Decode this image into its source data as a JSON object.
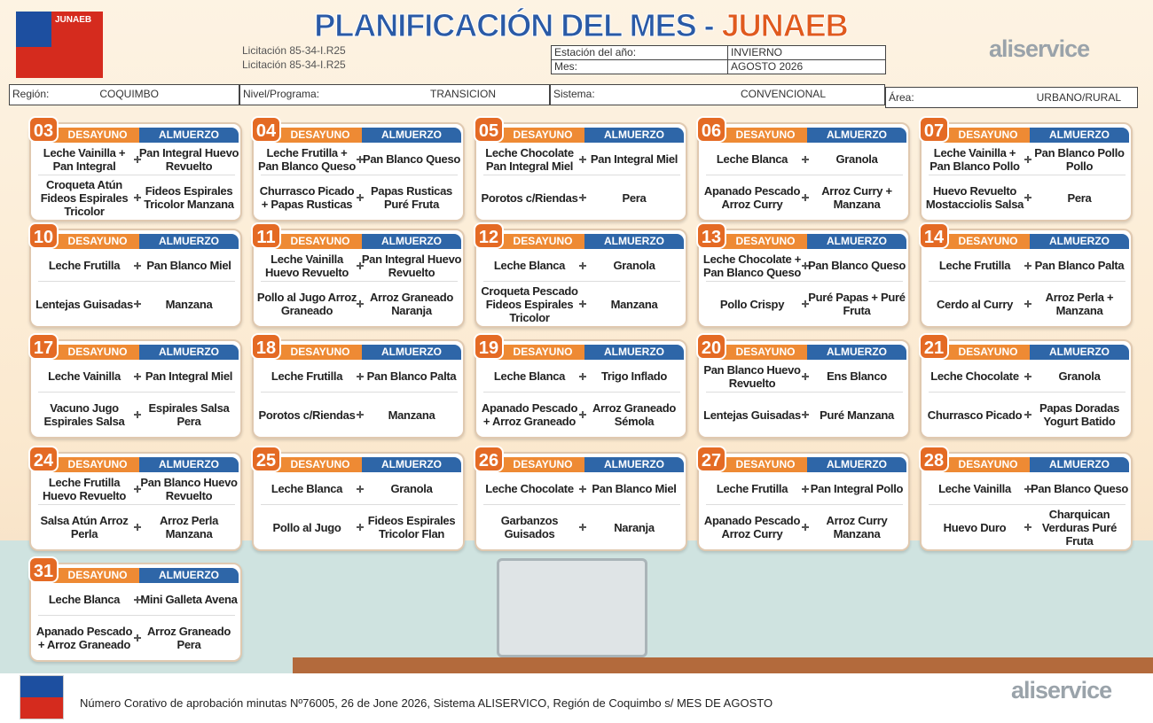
{
  "header": {
    "logo_left": "JUNAEB",
    "title": "PLANIFICACIÓN DEL MES - ",
    "title_accent": "JUNAEB",
    "logo_right": "aliservice",
    "licitacion": [
      "Licitación 85-34-I.R25",
      "Licitación 85-34-I.R25"
    ],
    "season_label": "Estación del año:",
    "season": "INVIERNO",
    "month_label": "Mes:",
    "month": "AGOSTO 2026",
    "region_label": "Región:",
    "region": "COQUIMBO",
    "level_label": "Nivel/Programa:",
    "level": "TRANSICION",
    "system_label": "Sistema:",
    "system": "CONVENCIONAL",
    "area_label": "Área:",
    "area": "URBANO/RURAL"
  },
  "menu": {
    "labels": {
      "breakfast": "DESAYUNO",
      "lunch": "ALMUERZO"
    },
    "days": [
      {
        "day": "03",
        "rows": [
          [
            "Leche Vainilla + Pan Integral",
            "Pan Integral Huevo Revuelto"
          ],
          [
            "Croqueta Atún Fideos Espirales Tricolor",
            "Fideos Espirales Tricolor Manzana"
          ]
        ]
      },
      {
        "day": "04",
        "rows": [
          [
            "Leche Frutilla + Pan Blanco Queso",
            "Pan Blanco Queso"
          ],
          [
            "Churrasco Picado + Papas Rusticas",
            "Papas Rusticas Puré Fruta"
          ]
        ]
      },
      {
        "day": "05",
        "rows": [
          [
            "Leche Chocolate Pan Integral Miel",
            "Pan Integral Miel"
          ],
          [
            "Porotos c/Riendas",
            "Pera"
          ]
        ]
      },
      {
        "day": "06",
        "rows": [
          [
            "Leche Blanca",
            "Granola"
          ],
          [
            "Apanado Pescado Arroz Curry",
            "Arroz Curry + Manzana"
          ]
        ]
      },
      {
        "day": "07",
        "rows": [
          [
            "Leche Vainilla + Pan Blanco Pollo",
            "Pan Blanco Pollo Pollo"
          ],
          [
            "Huevo Revuelto Mostacciolis Salsa",
            "Pera"
          ]
        ]
      },
      {
        "day": "10",
        "rows": [
          [
            "Leche Frutilla",
            "Pan Blanco Miel"
          ],
          [
            "Lentejas Guisadas",
            "Manzana"
          ]
        ]
      },
      {
        "day": "11",
        "rows": [
          [
            "Leche Vainilla Huevo Revuelto",
            "Pan Integral Huevo Revuelto"
          ],
          [
            "Pollo al Jugo Arroz Graneado",
            "Arroz Graneado Naranja"
          ]
        ]
      },
      {
        "day": "12",
        "rows": [
          [
            "Leche Blanca",
            "Granola"
          ],
          [
            "Croqueta Pescado Fideos Espirales Tricolor",
            "Manzana"
          ]
        ]
      },
      {
        "day": "13",
        "rows": [
          [
            "Leche Chocolate + Pan Blanco Queso",
            "Pan Blanco Queso"
          ],
          [
            "Pollo Crispy",
            "Puré Papas + Puré Fruta"
          ]
        ]
      },
      {
        "day": "14",
        "rows": [
          [
            "Leche Frutilla",
            "Pan Blanco Palta"
          ],
          [
            "Cerdo al Curry",
            "Arroz Perla + Manzana"
          ]
        ]
      },
      {
        "day": "17",
        "rows": [
          [
            "Leche Vainilla",
            "Pan Integral Miel"
          ],
          [
            "Vacuno Jugo Espirales Salsa",
            "Espirales Salsa Pera"
          ]
        ]
      },
      {
        "day": "18",
        "rows": [
          [
            "Leche Frutilla",
            "Pan Blanco Palta"
          ],
          [
            "Porotos c/Riendas",
            "Manzana"
          ]
        ]
      },
      {
        "day": "19",
        "rows": [
          [
            "Leche Blanca",
            "Trigo Inflado"
          ],
          [
            "Apanado Pescado + Arroz Graneado",
            "Arroz Graneado Sémola"
          ]
        ]
      },
      {
        "day": "20",
        "rows": [
          [
            "Pan Blanco Huevo Revuelto",
            "Ens Blanco"
          ],
          [
            "Lentejas Guisadas",
            "Puré Manzana"
          ]
        ]
      },
      {
        "day": "21",
        "rows": [
          [
            "Leche Chocolate",
            "Granola"
          ],
          [
            "Churrasco Picado",
            "Papas Doradas Yogurt Batido"
          ]
        ]
      },
      {
        "day": "24",
        "rows": [
          [
            "Leche Frutilla Huevo Revuelto",
            "Pan Blanco Huevo Revuelto"
          ],
          [
            "Salsa Atún Arroz Perla",
            "Arroz Perla Manzana"
          ]
        ]
      },
      {
        "day": "25",
        "rows": [
          [
            "Leche Blanca",
            "Granola"
          ],
          [
            "Pollo al Jugo",
            "Fideos Espirales Tricolor Flan"
          ]
        ]
      },
      {
        "day": "26",
        "rows": [
          [
            "Leche Chocolate",
            "Pan Blanco Miel"
          ],
          [
            "Garbanzos Guisados",
            "Naranja"
          ]
        ]
      },
      {
        "day": "27",
        "rows": [
          [
            "Leche Frutilla",
            "Pan Integral Pollo"
          ],
          [
            "Apanado Pescado Arroz Curry",
            "Arroz Curry Manzana"
          ]
        ]
      },
      {
        "day": "28",
        "rows": [
          [
            "Leche Vainilla",
            "Pan Blanco Queso"
          ],
          [
            "Huevo Duro",
            "Charquican Verduras Puré Fruta"
          ]
        ]
      },
      {
        "day": "31",
        "rows": [
          [
            "Leche Blanca",
            "Mini Galleta Avena"
          ],
          [
            "Apanado Pescado + Arroz Graneado",
            "Arroz Graneado Pera"
          ]
        ]
      }
    ]
  },
  "footer": {
    "text": "Número Corativo de aprobación minutas Nº76005, 26 de Jone 2026, Sistema ALISERVICO, Región de Coquimbo s/ MES DE AGOSTO",
    "logo": "aliservice"
  }
}
